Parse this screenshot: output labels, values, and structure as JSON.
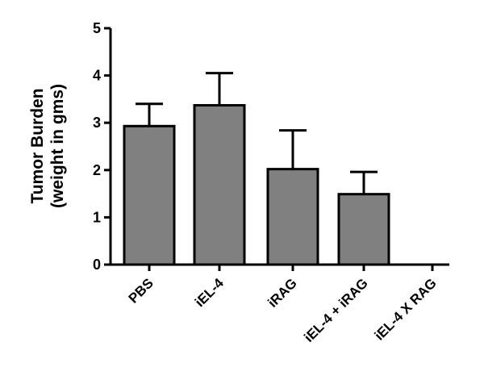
{
  "chart_data": {
    "type": "bar",
    "title": "",
    "xlabel": "",
    "ylabel": [
      "Tumor Burden",
      "(weight in gms)"
    ],
    "ylim": [
      0,
      5
    ],
    "yticks": [
      "0",
      "1",
      "2",
      "3",
      "4",
      "5"
    ],
    "categories": [
      "PBS",
      "iEL-4",
      "iRAG",
      "iEL-4 + iRAG",
      "iEL-4 X RAG"
    ],
    "values": [
      2.93,
      3.37,
      2.02,
      1.49,
      0
    ],
    "errors": [
      0.47,
      0.68,
      0.82,
      0.47,
      0
    ],
    "bar_color": "#808080",
    "grid": false,
    "legend": "none"
  }
}
